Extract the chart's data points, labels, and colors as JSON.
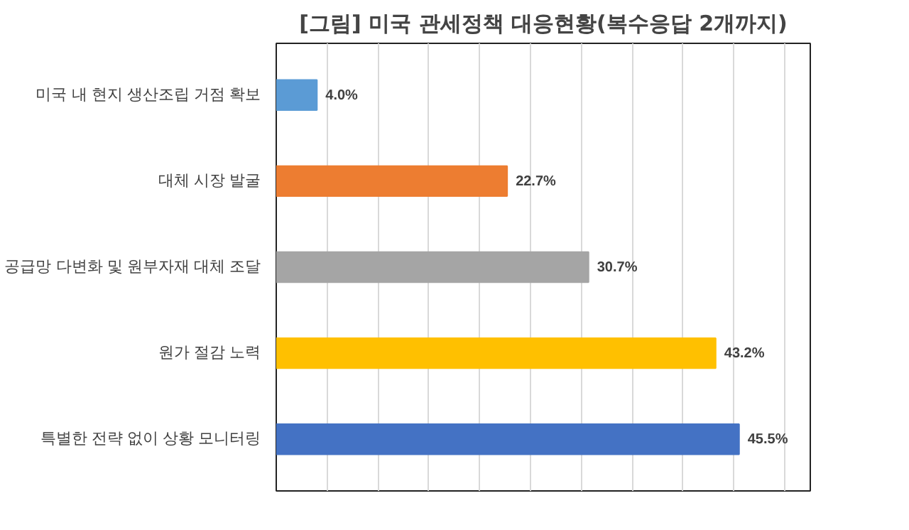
{
  "chart_data": {
    "type": "bar",
    "orientation": "horizontal",
    "title": "[그림] 미국 관세정책 대응현황(복수응답 2개까지)",
    "categories": [
      "미국 내 현지 생산조립 거점 확보",
      "대체 시장 발굴",
      "공급망 다변화 및 원부자재 대체 조달",
      "원가 절감 노력",
      "특별한 전략 없이 상황 모니터링"
    ],
    "values": [
      4.0,
      22.7,
      30.7,
      43.2,
      45.5
    ],
    "colors": [
      "#5b9bd5",
      "#ed7d31",
      "#a5a5a5",
      "#ffc000",
      "#4472c4"
    ],
    "value_labels": [
      "4.0%",
      "22.7%",
      "30.7%",
      "43.2%",
      "45.5%"
    ],
    "xlim": [
      0,
      52.5
    ],
    "xticks": [
      {
        "value": 0,
        "label": null
      },
      {
        "value": 5,
        "label": null
      },
      {
        "value": 10,
        "label": null
      },
      {
        "value": 15,
        "label": null
      },
      {
        "value": 20,
        "label": null
      },
      {
        "value": 25,
        "label": null
      },
      {
        "value": 30,
        "label": null
      },
      {
        "value": 35,
        "label": null
      },
      {
        "value": 40,
        "label": null
      },
      {
        "value": 45,
        "label": null
      },
      {
        "value": 50,
        "label": null
      }
    ],
    "grid": "x",
    "tick_labels": "y"
  }
}
